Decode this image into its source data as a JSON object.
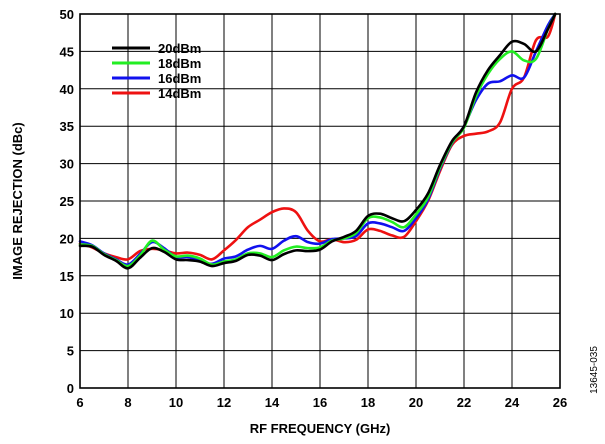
{
  "chart_data": {
    "type": "line",
    "xlabel": "RF FREQUENCY (GHz)",
    "ylabel": "IMAGE REJECTION (dBc)",
    "xlim": [
      6,
      26
    ],
    "ylim": [
      0,
      50
    ],
    "xticks": [
      6,
      8,
      10,
      12,
      14,
      16,
      18,
      20,
      22,
      24,
      26
    ],
    "yticks": [
      0,
      5,
      10,
      15,
      20,
      25,
      30,
      35,
      40,
      45,
      50
    ],
    "grid": true,
    "legend_position": "top-left",
    "figure_id": "13645-035",
    "series": [
      {
        "name": "20dBm",
        "color": "#000000",
        "x": [
          6,
          6.5,
          7,
          7.5,
          8,
          8.5,
          9,
          9.5,
          10,
          10.5,
          11,
          11.5,
          12,
          12.5,
          13,
          13.5,
          14,
          14.5,
          15,
          15.5,
          16,
          16.5,
          17,
          17.5,
          18,
          18.5,
          19,
          19.5,
          20,
          20.5,
          21,
          21.5,
          22,
          22.5,
          23,
          23.5,
          24,
          24.5,
          25,
          25.5,
          25.8
        ],
        "y": [
          19.0,
          18.9,
          17.8,
          17.0,
          16.0,
          17.4,
          18.7,
          18.2,
          17.2,
          17.1,
          16.9,
          16.3,
          16.7,
          17.0,
          17.8,
          17.7,
          17.1,
          17.9,
          18.4,
          18.3,
          18.5,
          19.6,
          20.2,
          21.0,
          23.0,
          23.3,
          22.7,
          22.3,
          23.8,
          26.0,
          29.8,
          33.0,
          35.0,
          39.5,
          42.5,
          44.5,
          46.3,
          46.0,
          45.0,
          48.0,
          50.0
        ]
      },
      {
        "name": "18dBm",
        "color": "#22ee22",
        "x": [
          6,
          6.5,
          7,
          7.5,
          8,
          8.5,
          9,
          9.5,
          10,
          10.5,
          11,
          11.5,
          12,
          12.5,
          13,
          13.5,
          14,
          14.5,
          15,
          15.5,
          16,
          16.5,
          17,
          17.5,
          18,
          18.5,
          19,
          19.5,
          20,
          20.5,
          21,
          21.5,
          22,
          22.5,
          23,
          23.5,
          24,
          24.5,
          25,
          25.5,
          25.8
        ],
        "y": [
          19.2,
          19.0,
          17.9,
          17.1,
          16.3,
          17.7,
          19.7,
          18.5,
          17.6,
          17.7,
          17.3,
          16.5,
          16.9,
          17.2,
          18.0,
          18.0,
          17.5,
          18.4,
          18.9,
          18.7,
          18.8,
          19.7,
          20.0,
          20.7,
          22.7,
          22.8,
          22.2,
          21.5,
          23.2,
          25.5,
          29.5,
          32.8,
          34.8,
          39.0,
          42.0,
          44.0,
          45.0,
          43.8,
          44.0,
          48.0,
          50.0
        ]
      },
      {
        "name": "16dBm",
        "color": "#1111ee",
        "x": [
          6,
          6.5,
          7,
          7.5,
          8,
          8.5,
          9,
          9.5,
          10,
          10.5,
          11,
          11.5,
          12,
          12.5,
          13,
          13.5,
          14,
          14.5,
          15,
          15.5,
          16,
          16.5,
          17,
          17.5,
          18,
          18.5,
          19,
          19.5,
          20,
          20.5,
          21,
          21.5,
          22,
          22.5,
          23,
          23.5,
          24,
          24.5,
          25,
          25.5,
          25.8
        ],
        "y": [
          19.6,
          19.1,
          18.0,
          17.2,
          16.5,
          17.9,
          19.5,
          18.7,
          17.5,
          17.5,
          17.0,
          16.6,
          17.3,
          17.6,
          18.5,
          19.0,
          18.6,
          19.7,
          20.3,
          19.5,
          19.3,
          19.9,
          20.0,
          20.3,
          22.0,
          22.0,
          21.5,
          21.0,
          22.7,
          25.2,
          29.3,
          32.7,
          35.0,
          38.5,
          40.7,
          41.0,
          41.8,
          41.5,
          45.0,
          48.5,
          50.0
        ]
      },
      {
        "name": "14dBm",
        "color": "#ee1111",
        "x": [
          6,
          6.5,
          7,
          7.5,
          8,
          8.5,
          9,
          9.5,
          10,
          10.5,
          11,
          11.5,
          12,
          12.5,
          13,
          13.5,
          14,
          14.5,
          15,
          15.5,
          16,
          16.5,
          17,
          17.5,
          18,
          18.5,
          19,
          19.5,
          20,
          20.5,
          21,
          21.5,
          22,
          22.5,
          23,
          23.5,
          24,
          24.5,
          25,
          25.5,
          25.8
        ],
        "y": [
          19.3,
          18.8,
          18.0,
          17.5,
          17.2,
          18.3,
          18.6,
          18.4,
          18.0,
          18.1,
          17.8,
          17.2,
          18.4,
          19.8,
          21.5,
          22.5,
          23.5,
          24.0,
          23.5,
          21.0,
          19.6,
          19.9,
          19.5,
          19.8,
          21.2,
          21.0,
          20.4,
          20.2,
          22.3,
          25.0,
          29.0,
          32.5,
          33.7,
          34.0,
          34.3,
          35.5,
          40.0,
          41.5,
          46.5,
          47.0,
          50.0
        ]
      }
    ]
  }
}
